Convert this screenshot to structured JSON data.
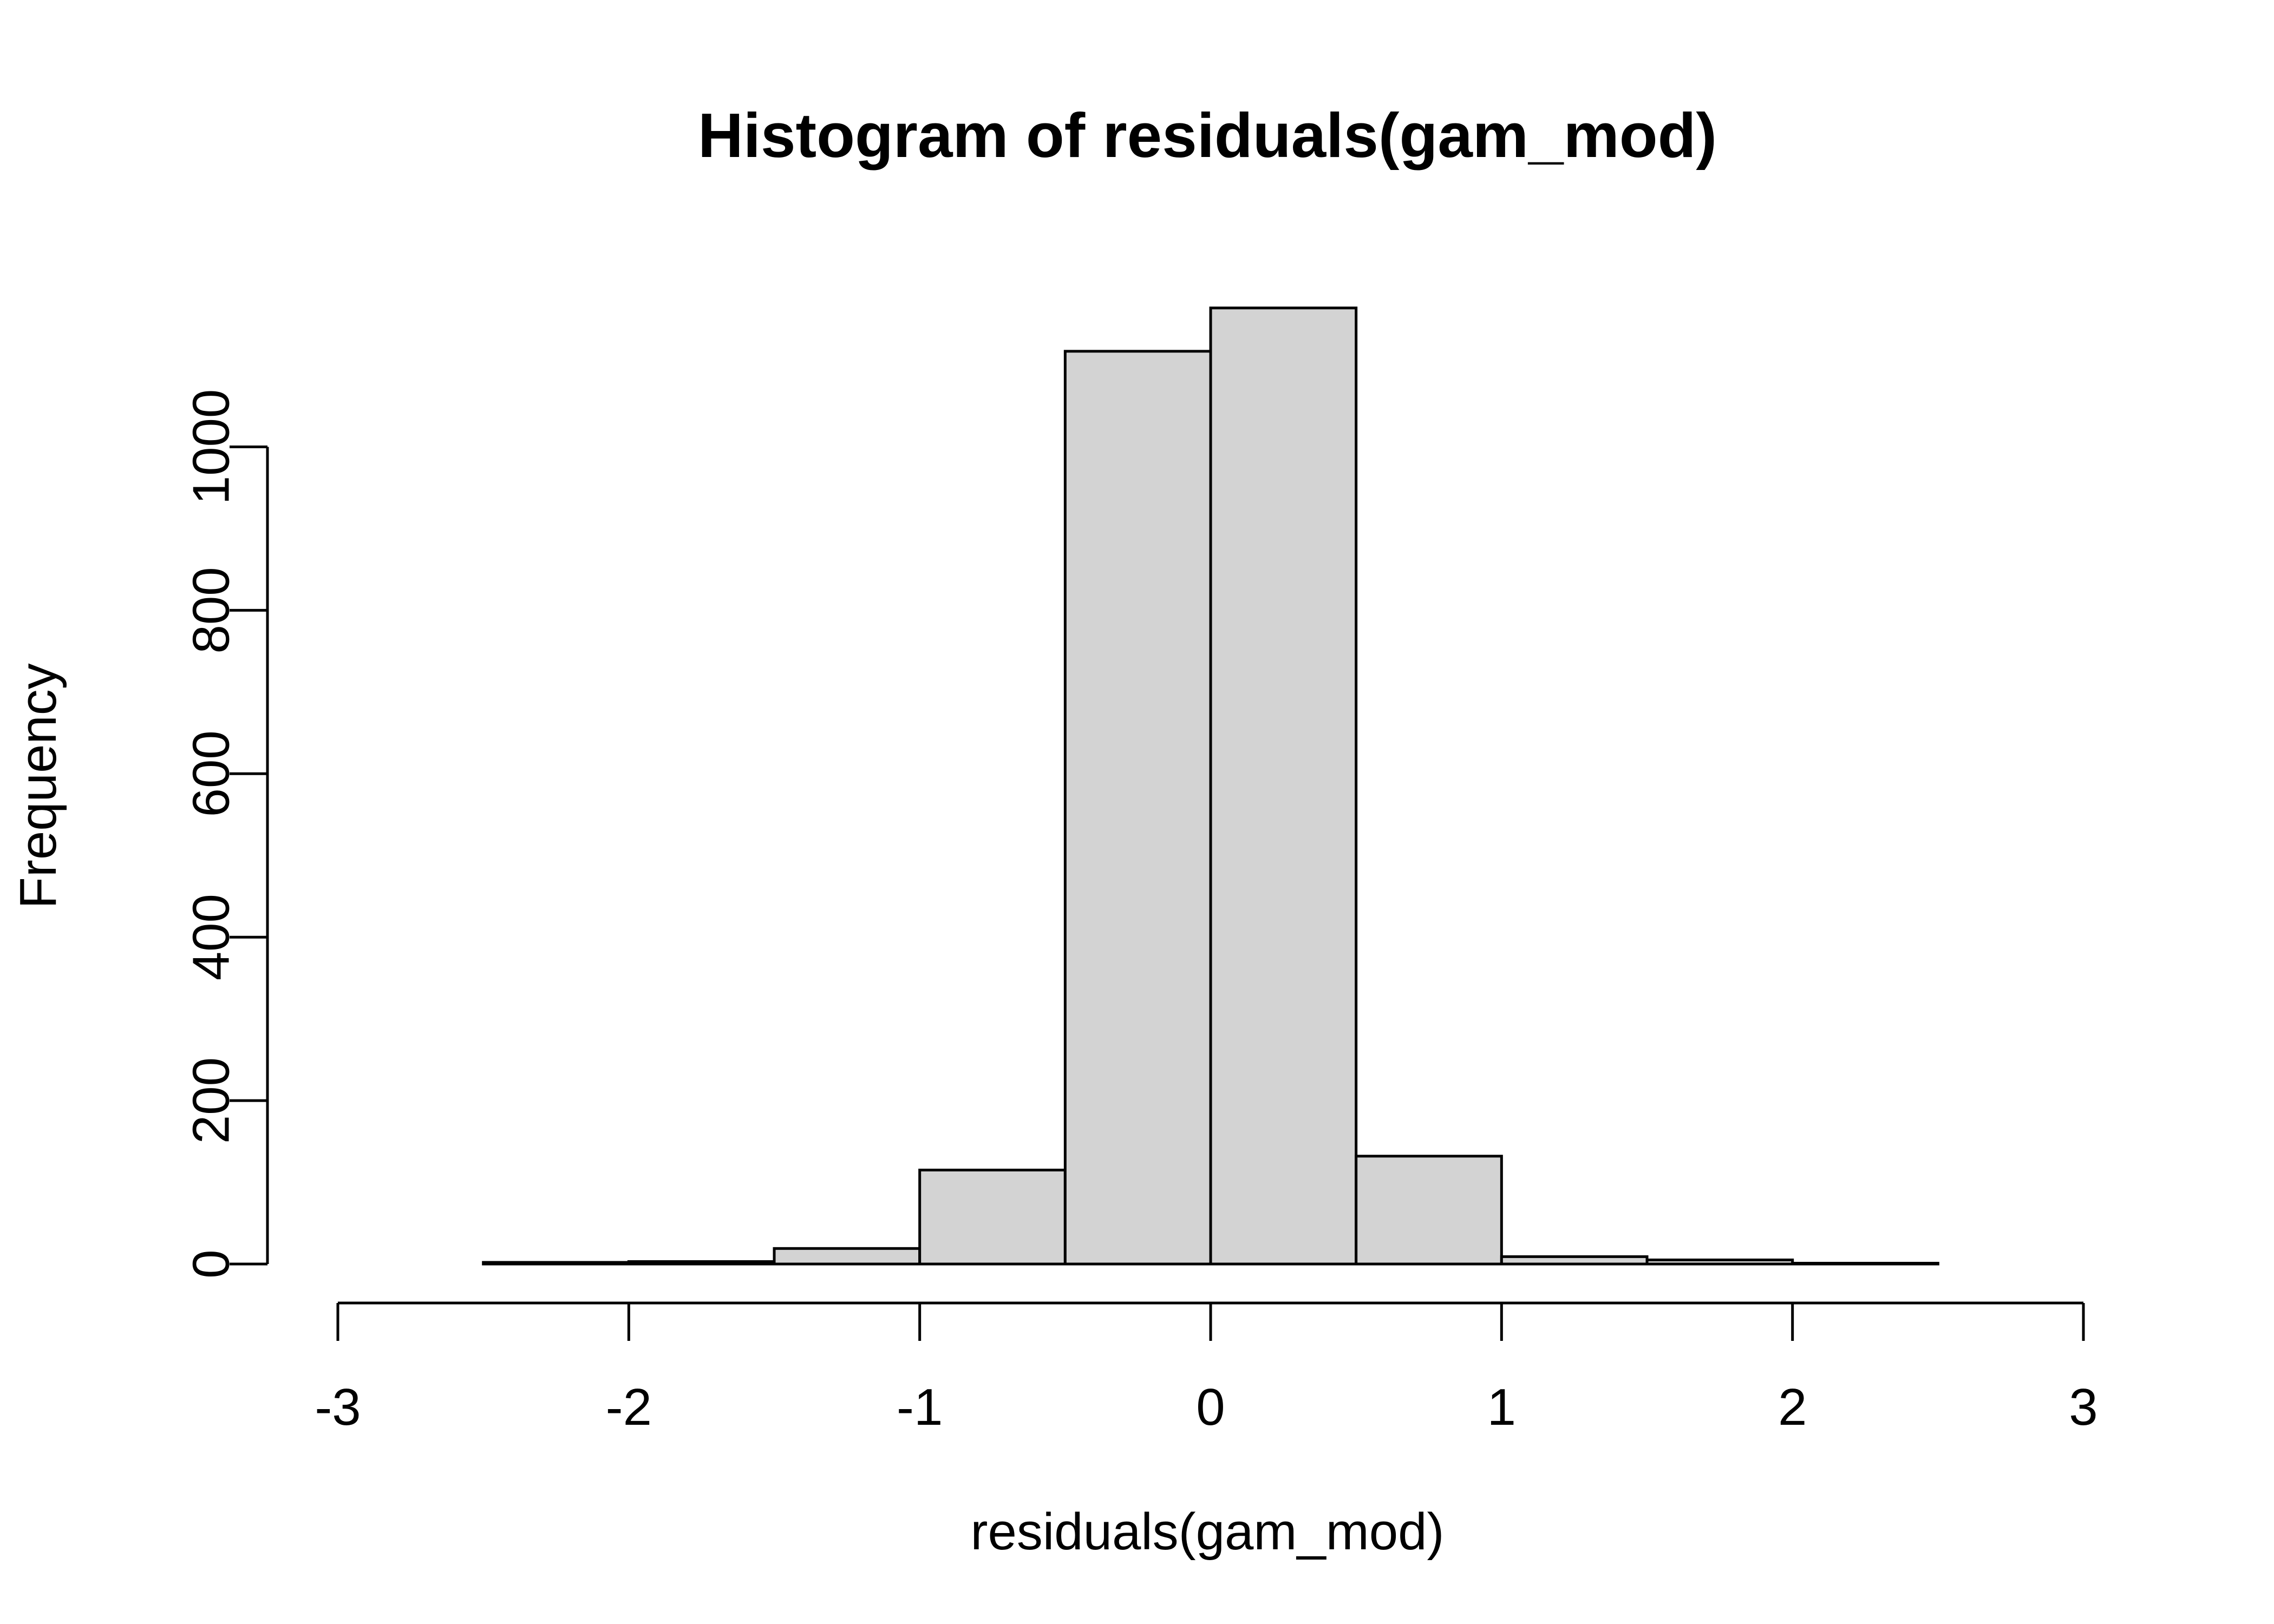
{
  "chart_data": {
    "type": "bar",
    "title": "Histogram of residuals(gam_mod)",
    "xlabel": "residuals(gam_mod)",
    "ylabel": "Frequency",
    "xlim": [
      -3,
      3
    ],
    "ylim": [
      0,
      1200
    ],
    "x_ticks": [
      -3,
      -2,
      -1,
      0,
      1,
      2,
      3
    ],
    "x_tick_labels": [
      "-3",
      "-2",
      "-1",
      "0",
      "1",
      "2",
      "3"
    ],
    "y_ticks": [
      0,
      200,
      400,
      600,
      800,
      1000
    ],
    "y_tick_labels": [
      "0",
      "200",
      "400",
      "600",
      "800",
      "1000"
    ],
    "bins": [
      {
        "start": -3.0,
        "end": -2.5,
        "count": 0
      },
      {
        "start": -2.5,
        "end": -2.0,
        "count": 2
      },
      {
        "start": -2.0,
        "end": -1.5,
        "count": 3
      },
      {
        "start": -1.5,
        "end": -1.0,
        "count": 19
      },
      {
        "start": -1.0,
        "end": -0.5,
        "count": 115
      },
      {
        "start": -0.5,
        "end": 0.0,
        "count": 1117
      },
      {
        "start": 0.0,
        "end": 0.5,
        "count": 1170
      },
      {
        "start": 0.5,
        "end": 1.0,
        "count": 132
      },
      {
        "start": 1.0,
        "end": 1.5,
        "count": 9
      },
      {
        "start": 1.5,
        "end": 2.0,
        "count": 5
      },
      {
        "start": 2.0,
        "end": 2.5,
        "count": 1
      },
      {
        "start": 2.5,
        "end": 3.0,
        "count": 0
      }
    ],
    "bar_fill": "#d3d3d3",
    "bar_stroke": "#000000",
    "grid": false,
    "legend": "none"
  }
}
